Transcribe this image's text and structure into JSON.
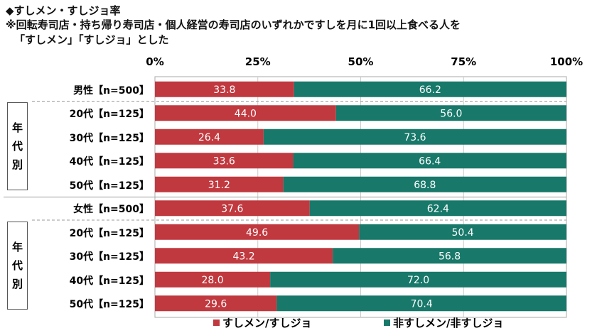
{
  "title": "◆すしメン・すしジョ率",
  "note_line1": "※回転寿司店・持ち帰り寿司店・個人経営の寿司店のいずれかですしを月に1回以上食べる人を",
  "note_line2": "「すしメン」「すしジョ」とした",
  "group_box_label": [
    "年",
    "代",
    "別"
  ],
  "chart_data": {
    "type": "bar",
    "orientation": "horizontal-stacked-100",
    "categories": [
      "男性【n=500】",
      "20代【n=125】",
      "30代【n=125】",
      "40代【n=125】",
      "50代【n=125】",
      "女性【n=500】",
      "20代【n=125】",
      "30代【n=125】",
      "40代【n=125】",
      "50代【n=125】"
    ],
    "series": [
      {
        "name": "すしメン/すしジョ",
        "color": "#c0393f",
        "values": [
          33.8,
          44.0,
          26.4,
          33.6,
          31.2,
          37.6,
          49.6,
          43.2,
          28.0,
          29.6
        ]
      },
      {
        "name": "非すしメン/非すしジョ",
        "color": "#18786a",
        "values": [
          66.2,
          56.0,
          73.6,
          66.4,
          68.8,
          62.4,
          50.4,
          56.8,
          72.0,
          70.4
        ]
      }
    ],
    "xticks": [
      "0%",
      "25%",
      "50%",
      "75%",
      "100%"
    ],
    "xlim": [
      0,
      100
    ],
    "legend": "bottom"
  }
}
